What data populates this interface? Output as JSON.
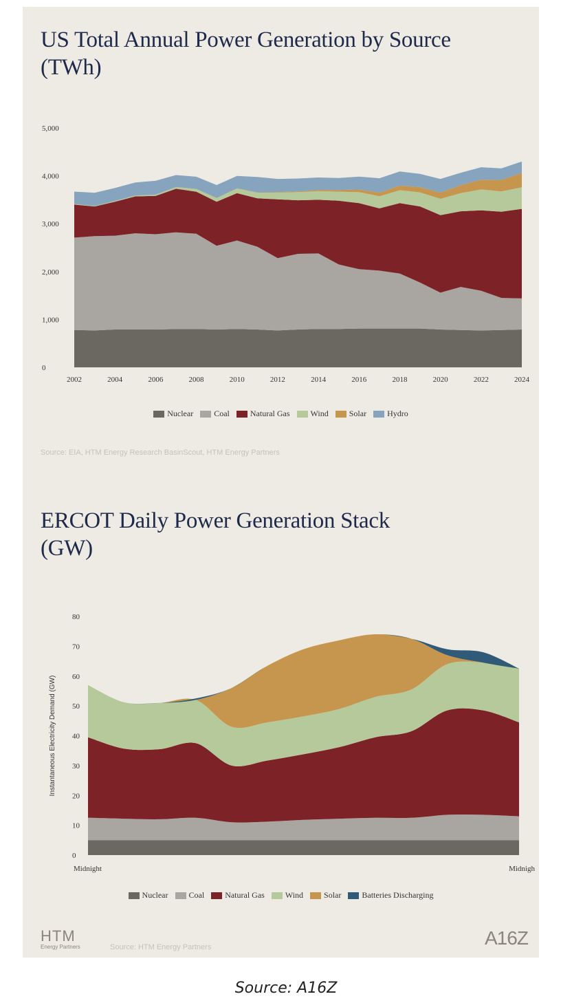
{
  "caption": "Source: A16Z",
  "chart_data": [
    {
      "type": "area",
      "stacked": true,
      "title_lines": [
        "US Total Annual Power Generation by Source",
        "(TWh)"
      ],
      "xlabel": "",
      "ylabel": "",
      "x": [
        2002,
        2003,
        2004,
        2005,
        2006,
        2007,
        2008,
        2009,
        2010,
        2011,
        2012,
        2013,
        2014,
        2015,
        2016,
        2017,
        2018,
        2019,
        2020,
        2021,
        2022,
        2023,
        2024
      ],
      "xticks": [
        2002,
        2004,
        2006,
        2008,
        2010,
        2012,
        2014,
        2016,
        2018,
        2020,
        2022,
        2024
      ],
      "ylim": [
        0,
        5000
      ],
      "yticks": [
        0,
        1000,
        2000,
        3000,
        4000,
        5000
      ],
      "ytick_labels": [
        "0",
        "1,000",
        "2,000",
        "3,000",
        "4,000",
        "5,000"
      ],
      "series": [
        {
          "name": "Nuclear",
          "color": "#6b6862",
          "values": [
            780,
            770,
            790,
            790,
            790,
            800,
            800,
            790,
            800,
            790,
            770,
            790,
            800,
            800,
            810,
            810,
            810,
            810,
            790,
            780,
            770,
            780,
            790
          ]
        },
        {
          "name": "Coal",
          "color": "#a9a6a2",
          "values": [
            1930,
            1970,
            1960,
            2010,
            1990,
            2020,
            1990,
            1750,
            1850,
            1730,
            1510,
            1580,
            1580,
            1350,
            1240,
            1210,
            1150,
            960,
            770,
            900,
            830,
            670,
            650
          ]
        },
        {
          "name": "Natural Gas",
          "color": "#7d2227",
          "values": [
            690,
            620,
            710,
            770,
            800,
            910,
            880,
            920,
            990,
            1010,
            1230,
            1120,
            1120,
            1330,
            1380,
            1300,
            1470,
            1590,
            1620,
            1580,
            1680,
            1800,
            1870
          ]
        },
        {
          "name": "Wind",
          "color": "#b5c99a",
          "values": [
            10,
            10,
            15,
            20,
            25,
            35,
            55,
            75,
            95,
            120,
            140,
            170,
            180,
            190,
            230,
            255,
            270,
            295,
            340,
            380,
            435,
            425,
            450
          ]
        },
        {
          "name": "Solar",
          "color": "#c6964e",
          "values": [
            1,
            1,
            1,
            1,
            1,
            1,
            2,
            3,
            4,
            5,
            10,
            15,
            25,
            35,
            55,
            75,
            95,
            110,
            130,
            165,
            205,
            240,
            300
          ]
        },
        {
          "name": "Hydro",
          "color": "#86a4bd",
          "values": [
            260,
            275,
            270,
            270,
            290,
            250,
            255,
            270,
            260,
            320,
            276,
            269,
            260,
            250,
            268,
            300,
            295,
            275,
            285,
            260,
            260,
            240,
            240
          ]
        }
      ],
      "legend": [
        "Nuclear",
        "Coal",
        "Natural Gas",
        "Wind",
        "Solar",
        "Hydro"
      ],
      "legend_position": "bottom",
      "source": "Source: EIA, HTM Energy Research BasinScout, HTM Energy Partners"
    },
    {
      "type": "area",
      "stacked": true,
      "title_lines": [
        "ERCOT Daily Power Generation Stack",
        "(GW)"
      ],
      "xlabel": "",
      "ylabel": "Instantaneous Electricity Demand (GW)",
      "x_labels": [
        "Midnight",
        "Midnigh"
      ],
      "x_hours": [
        0,
        2,
        4,
        6,
        8,
        10,
        12,
        14,
        16,
        18,
        20,
        22,
        24
      ],
      "ylim": [
        0,
        80
      ],
      "yticks": [
        0,
        10,
        20,
        30,
        40,
        50,
        60,
        70,
        80
      ],
      "series": [
        {
          "name": "Nuclear",
          "color": "#6b6862",
          "values": [
            5,
            5,
            5,
            5,
            5,
            5,
            5,
            5,
            5,
            5,
            5,
            5,
            5
          ]
        },
        {
          "name": "Coal",
          "color": "#a9a6a2",
          "values": [
            7.5,
            7.2,
            7,
            7.5,
            6,
            6.2,
            6.8,
            7.2,
            7.5,
            7.5,
            8.5,
            8.5,
            8
          ]
        },
        {
          "name": "Natural Gas",
          "color": "#7d2227",
          "values": [
            27,
            23.5,
            23.5,
            25,
            19,
            20.5,
            22,
            24,
            27,
            29,
            35,
            35,
            31.5
          ]
        },
        {
          "name": "Wind",
          "color": "#b5c99a",
          "values": [
            17.5,
            15.5,
            15.5,
            14.5,
            13,
            12.8,
            12.7,
            12.8,
            13.5,
            14,
            15.5,
            16,
            18
          ]
        },
        {
          "name": "Solar",
          "color": "#c6964e",
          "values": [
            0,
            0,
            0,
            0,
            13,
            19,
            22.5,
            23,
            21,
            17,
            3,
            0,
            0
          ]
        },
        {
          "name": "Batteries Discharging",
          "color": "#2f5b78",
          "values": [
            0,
            0,
            0,
            0.5,
            0,
            0,
            0,
            0,
            0,
            0,
            2,
            3.5,
            0
          ]
        }
      ],
      "legend": [
        "Nuclear",
        "Coal",
        "Natural Gas",
        "Wind",
        "Solar",
        "Batteries Discharging"
      ],
      "legend_position": "bottom",
      "source": "Source: HTM Energy Partners"
    }
  ],
  "logos": {
    "htm_main": "HTM",
    "htm_sub": "Energy Partners",
    "a16z": "A16Z"
  }
}
